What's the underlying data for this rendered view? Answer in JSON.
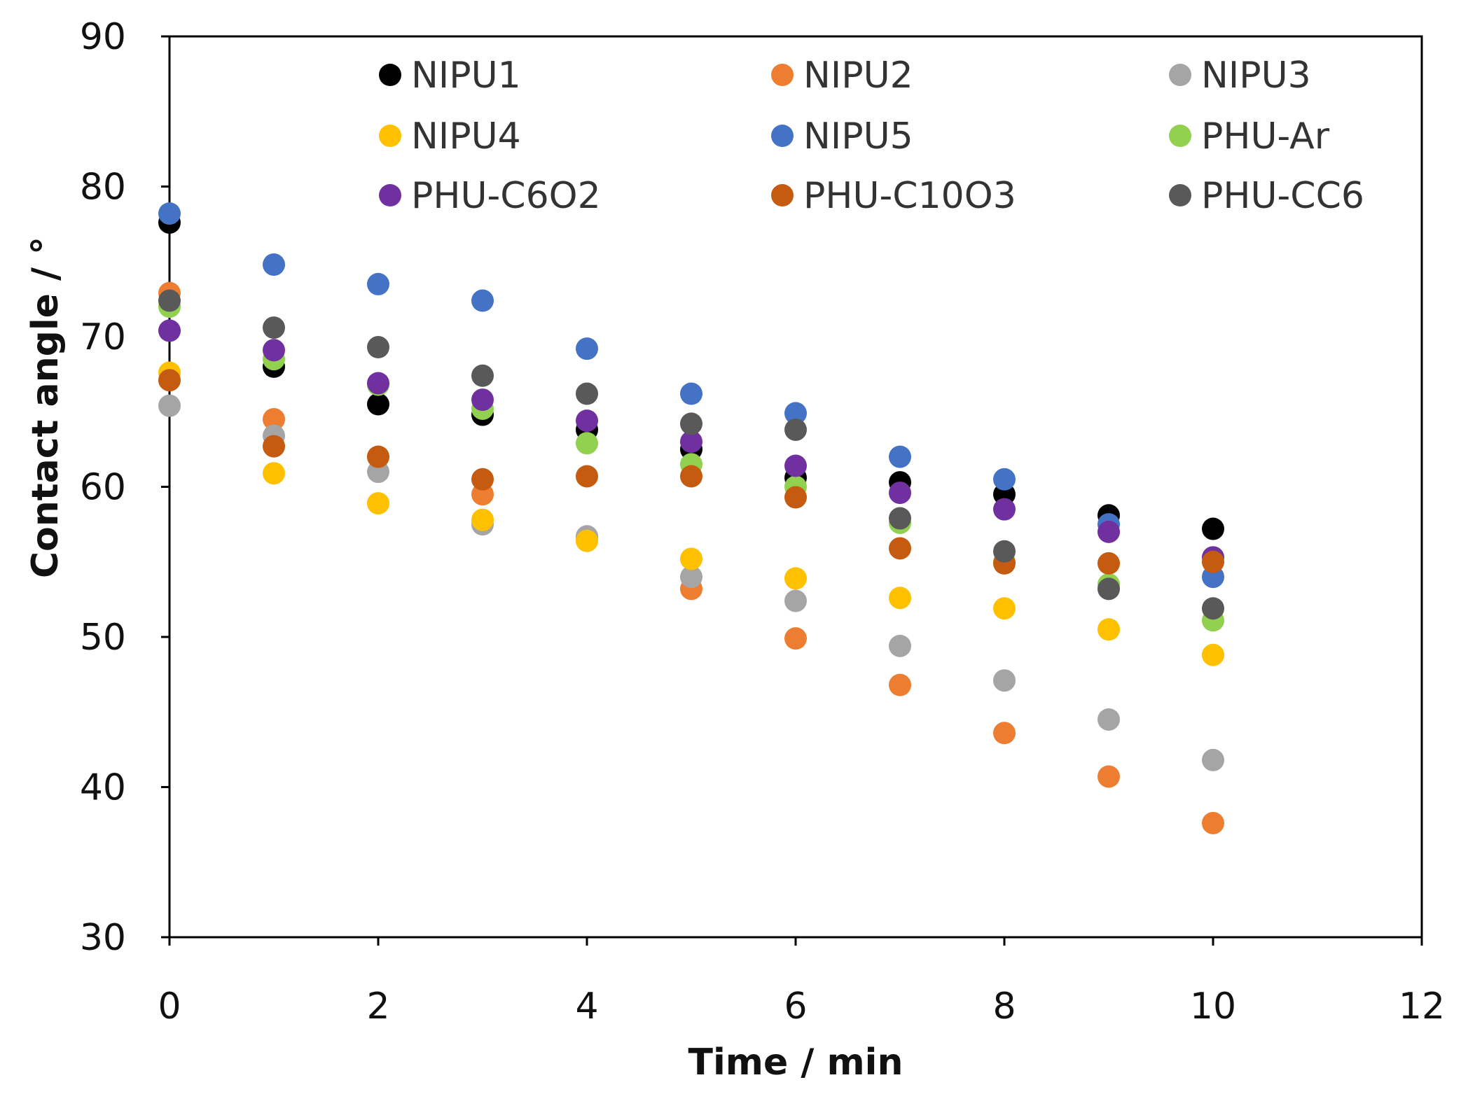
{
  "chart_data": {
    "type": "scatter",
    "title": "",
    "xlabel": "Time / min",
    "ylabel": "Contact angle / °",
    "xlim": [
      0,
      12
    ],
    "ylim": [
      30,
      90
    ],
    "x_ticks": [
      0,
      2,
      4,
      6,
      8,
      10,
      12
    ],
    "y_ticks": [
      30,
      40,
      50,
      60,
      70,
      80,
      90
    ],
    "x_tick_labels": [
      "0",
      "2",
      "4",
      "6",
      "8",
      "10",
      "12"
    ],
    "y_tick_labels": [
      "30",
      "40",
      "50",
      "60",
      "70",
      "80",
      "90"
    ],
    "grid": false,
    "legend_position": "top",
    "legend_columns": 3,
    "x": [
      0,
      1,
      2,
      3,
      4,
      5,
      6,
      7,
      8,
      9,
      10
    ],
    "series": [
      {
        "name": "NIPU1",
        "color": "#000000",
        "values": [
          77.6,
          68.0,
          65.5,
          64.8,
          63.8,
          62.5,
          60.6,
          60.3,
          59.5,
          58.1,
          57.2
        ]
      },
      {
        "name": "NIPU2",
        "color": "#ED7D31",
        "values": [
          72.9,
          64.5,
          62.0,
          59.5,
          56.6,
          53.2,
          49.9,
          46.8,
          43.6,
          40.7,
          37.6
        ]
      },
      {
        "name": "NIPU3",
        "color": "#A5A5A5",
        "values": [
          65.4,
          63.4,
          61.0,
          57.5,
          56.7,
          54.0,
          52.4,
          49.4,
          47.1,
          44.5,
          41.8
        ]
      },
      {
        "name": "NIPU4",
        "color": "#FFC000",
        "values": [
          67.6,
          60.9,
          58.9,
          57.8,
          56.4,
          55.2,
          53.9,
          52.6,
          51.9,
          50.5,
          48.8
        ]
      },
      {
        "name": "NIPU5",
        "color": "#4472C4",
        "values": [
          78.2,
          74.8,
          73.5,
          72.4,
          69.2,
          66.2,
          64.9,
          62.0,
          60.5,
          57.5,
          54.0
        ]
      },
      {
        "name": "PHU-Ar",
        "color": "#92D050",
        "values": [
          72.0,
          68.5,
          66.8,
          65.2,
          62.9,
          61.5,
          60.0,
          57.6,
          55.0,
          53.5,
          51.1
        ]
      },
      {
        "name": "PHU-C6O2",
        "color": "#7030A0",
        "values": [
          70.4,
          69.1,
          66.9,
          65.8,
          64.4,
          63.0,
          61.4,
          59.6,
          58.5,
          57.0,
          55.3
        ]
      },
      {
        "name": "PHU-C10O3",
        "color": "#C55A11",
        "values": [
          67.1,
          62.7,
          62.0,
          60.5,
          60.7,
          60.7,
          59.3,
          55.9,
          54.9,
          54.9,
          55.0
        ]
      },
      {
        "name": "PHU-CC6",
        "color": "#595959",
        "values": [
          72.4,
          70.6,
          69.3,
          67.4,
          66.2,
          64.2,
          63.8,
          57.9,
          55.7,
          53.2,
          51.9
        ]
      }
    ]
  }
}
